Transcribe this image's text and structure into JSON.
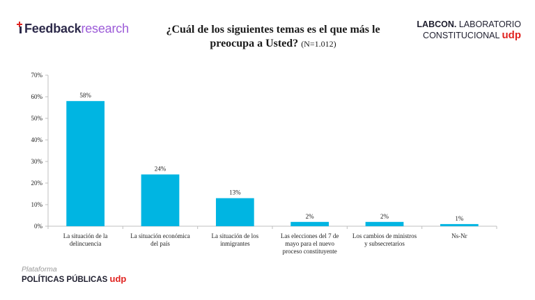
{
  "header": {
    "brand_left_bold": "Feedback",
    "brand_left_light": "research",
    "title_main": "¿Cuál de los siguientes temas es el que más le preocupa a Usted?",
    "title_sub": "(N=1.012)",
    "brand_right_bold": "LABCON.",
    "brand_right_rest": "LABORATORIO",
    "brand_right_line2": "CONSTITUCIONAL",
    "brand_right_udp": "udp"
  },
  "footer": {
    "plataforma": "Plataforma",
    "politicas": "POLÍTICAS PÚBLICAS",
    "udp": "udp"
  },
  "colors": {
    "bar": "#00b5e2",
    "udp_red": "#e0221f",
    "brand_purple": "#9c5bd8",
    "brand_dark": "#2d2a4a"
  },
  "chart_data": {
    "type": "bar",
    "categories": [
      [
        "La situación de la",
        "delincuencia"
      ],
      [
        "La situación económica",
        "del país"
      ],
      [
        "La situación de los",
        "inmigrantes"
      ],
      [
        "Las elecciones del 7 de",
        "mayo para el nuevo",
        "proceso constituyente"
      ],
      [
        "Los cambios de ministros",
        "y subsecretarios"
      ],
      [
        "Ns-Nr"
      ]
    ],
    "values": [
      58,
      24,
      13,
      2,
      2,
      1
    ],
    "data_labels": [
      "58%",
      "24%",
      "13%",
      "2%",
      "2%",
      "1%"
    ],
    "ylim": [
      0,
      70
    ],
    "yticks": [
      0,
      10,
      20,
      30,
      40,
      50,
      60,
      70
    ],
    "ytick_labels": [
      "0%",
      "10%",
      "20%",
      "30%",
      "40%",
      "50%",
      "60%",
      "70%"
    ],
    "grid": false,
    "legend": "none"
  }
}
